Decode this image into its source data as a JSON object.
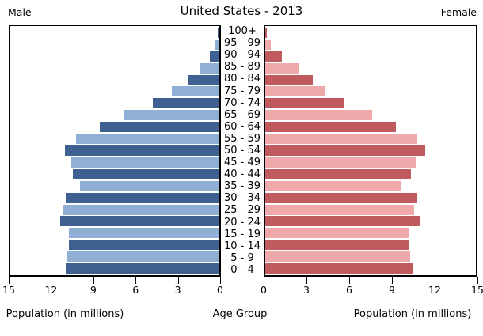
{
  "header": {
    "title": "United States - 2013",
    "male_label": "Male",
    "female_label": "Female"
  },
  "footer": {
    "left_axis_label": "Population (in millions)",
    "center_label": "Age Group",
    "right_axis_label": "Population (in millions)"
  },
  "chart_data": {
    "type": "bar",
    "subtype": "population_pyramid",
    "title": "United States - 2013",
    "unit": "millions",
    "xlim": [
      0,
      15
    ],
    "grid": false,
    "legend_position": "none",
    "categories": [
      "100+",
      "95 - 99",
      "90 - 94",
      "85 - 89",
      "80 - 84",
      "75 - 79",
      "70 - 74",
      "65 - 69",
      "60 - 64",
      "55 - 59",
      "50 - 54",
      "45 - 49",
      "40 - 44",
      "35 - 39",
      "30 - 34",
      "25 - 29",
      "20 - 24",
      "15 - 19",
      "10 - 14",
      "5 - 9",
      "0 - 4"
    ],
    "series": [
      {
        "name": "Male",
        "side": "left",
        "color_dark": "#3e6191",
        "color_light": "#8fafd4",
        "values": [
          0.1,
          0.3,
          0.7,
          1.4,
          2.3,
          3.4,
          4.8,
          6.8,
          8.6,
          10.3,
          11.1,
          10.6,
          10.5,
          10.0,
          11.0,
          11.2,
          11.4,
          10.8,
          10.8,
          10.9,
          11.0
        ]
      },
      {
        "name": "Female",
        "side": "right",
        "color_dark": "#c05a5e",
        "color_light": "#f0a9ab",
        "values": [
          0.1,
          0.4,
          1.2,
          2.4,
          3.4,
          4.3,
          5.6,
          7.6,
          9.3,
          10.8,
          11.4,
          10.7,
          10.4,
          9.7,
          10.8,
          10.6,
          11.0,
          10.2,
          10.2,
          10.3,
          10.5
        ]
      }
    ],
    "x_ticks_male": [
      15,
      12,
      9,
      6,
      3,
      0
    ],
    "x_ticks_female": [
      0,
      3,
      6,
      9,
      12,
      15
    ],
    "xlabel": "Population (in millions)",
    "center_axis_label": "Age Group"
  }
}
